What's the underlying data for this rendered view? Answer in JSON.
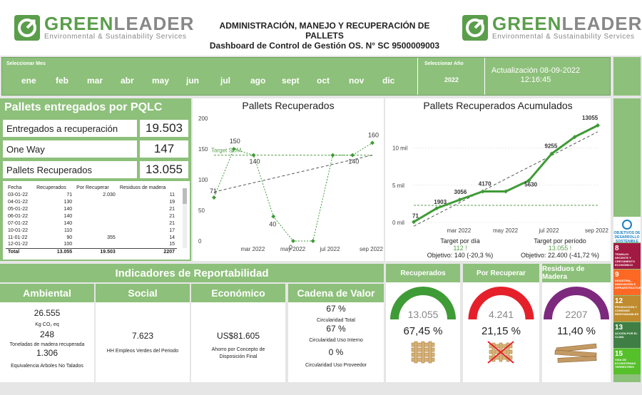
{
  "header": {
    "logo_name_1": "GREEN",
    "logo_name_2": "LEADER",
    "logo_tagline": "Environmental & Sustainability Services",
    "title_line1": "ADMINISTRACIÓN, MANEJO Y RECUPERACIÓN DE PALLETS",
    "title_line2": "Dashboard de Control de Gestión  OS.  N° SC 9500009003"
  },
  "filters": {
    "month_label": "Seleccionar Mes",
    "months": [
      "ene",
      "feb",
      "mar",
      "abr",
      "may",
      "jun",
      "jul",
      "ago",
      "sept",
      "oct",
      "nov",
      "dic"
    ],
    "year_label": "Seleccionar Año",
    "year": "2022",
    "update_line1": "Actualización 08-09-2022",
    "update_line2": "12:16:45"
  },
  "pqlc": {
    "title": "Pallets entregados por PQLC",
    "rows": [
      {
        "label": "Entregados a recuperación",
        "value": "19.503"
      },
      {
        "label": "One Way",
        "value": "147"
      },
      {
        "label": "Pallets Recuperados",
        "value": "13.055"
      }
    ],
    "table_headers": [
      "Fecha",
      "Recuperados",
      "Por Recuperar",
      "Residuos de madera"
    ],
    "table_rows": [
      [
        "03-01-22",
        "71",
        "2.030",
        "11"
      ],
      [
        "04-01-22",
        "130",
        "",
        "19"
      ],
      [
        "05-01-22",
        "140",
        "",
        "21"
      ],
      [
        "06-01-22",
        "140",
        "",
        "21"
      ],
      [
        "07-01-22",
        "140",
        "",
        "21"
      ],
      [
        "10-01-22",
        "110",
        "",
        "17"
      ],
      [
        "11-01-22",
        "90",
        "355",
        "14"
      ],
      [
        "12-01-22",
        "100",
        "",
        "15"
      ]
    ],
    "table_total": [
      "Total",
      "13.055",
      "19.503",
      "2207"
    ]
  },
  "chart_recuperados": {
    "title": "Pallets Recuperados",
    "target_label": "Target SCM",
    "y_ticks": [
      "0",
      "50",
      "100",
      "150",
      "200"
    ],
    "x_ticks": [
      "mar 2022",
      "may 2022",
      "jul 2022",
      "sep 2022"
    ],
    "point_labels": [
      "150",
      "71",
      "140",
      "40",
      "0",
      "160",
      "140"
    ]
  },
  "chart_acumulados": {
    "title": "Pallets Recuperados Acumulados",
    "y_ticks": [
      "0 mil",
      "5 mil",
      "10 mil"
    ],
    "x_ticks": [
      "mar 2022",
      "may 2022",
      "jul 2022",
      "sep 2022"
    ],
    "point_labels": [
      "71",
      "1903",
      "3056",
      "4170",
      "5630",
      "9255",
      "13055"
    ],
    "target_day_label": "Target por día",
    "target_day_value": "112 !",
    "target_day_obj": "Objetivo: 140 (-20,3 %)",
    "target_period_label": "Target por período",
    "target_period_value": "13.055 !",
    "target_period_obj": "Objetivo: 22.400 (-41,72 %)"
  },
  "chart_data": [
    {
      "type": "line",
      "title": "Pallets Recuperados",
      "x": [
        "ene 2022",
        "feb 2022",
        "mar 2022",
        "abr 2022",
        "may 2022",
        "jun 2022",
        "jul 2022",
        "ago 2022",
        "sep 2022"
      ],
      "series": [
        {
          "values": [
            71,
            150,
            140,
            40,
            0,
            0,
            140,
            140,
            160
          ]
        }
      ],
      "target": 140,
      "ylim": [
        0,
        200
      ]
    },
    {
      "type": "line",
      "title": "Pallets Recuperados Acumulados",
      "x": [
        "ene 2022",
        "feb 2022",
        "mar 2022",
        "abr 2022",
        "may 2022",
        "jun 2022",
        "jul 2022",
        "ago 2022",
        "sep 2022"
      ],
      "series": [
        {
          "values": [
            71,
            1903,
            3056,
            4170,
            4170,
            5630,
            9255,
            11500,
            13055
          ]
        }
      ],
      "ylim": [
        0,
        14000
      ]
    }
  ],
  "indicadores": {
    "title": "Indicadores de Reportabilidad",
    "ambiental": {
      "head": "Ambiental",
      "v1": "26.555",
      "u1": "Kg CO₂ eq",
      "v2": "248",
      "u2": "Toneladas de madera recuperada",
      "v3": "1.306",
      "u3": "Equivalencia Arboles No Talados"
    },
    "social": {
      "head": "Social",
      "value": "7.623",
      "unit": "HH Empleos Verdes del Periodo"
    },
    "economico": {
      "head": "Económico",
      "value": "US$81.605",
      "unit": "Ahorro por Concepto de Disposición Final"
    },
    "cadena": {
      "head": "Cadena de Valor",
      "v1": "67 %",
      "u1": "Circularidad Total",
      "v2": "67 %",
      "u2": "Circularidad Uso Interno",
      "v3": "0 %",
      "u3": "Circularidad Uso Proveedor"
    }
  },
  "gauges": [
    {
      "title": "Recuperados",
      "value": "13.055",
      "percent": "67,45 %",
      "fraction": 0.6745,
      "color": "#3f9b36"
    },
    {
      "title": "Por Recuperar",
      "value": "4.241",
      "percent": "21,15 %",
      "fraction": 0.2115,
      "color": "#e5202a"
    },
    {
      "title": "Residuos de Madera",
      "value": "2207",
      "percent": "11,40 %",
      "fraction": 0.114,
      "color": "#7d2a7e"
    }
  ],
  "sdg": {
    "head": "OBJETIVOS DE DESARROLLO SOSTENIBLE",
    "items": [
      {
        "num": "8",
        "text": "TRABAJO DECENTE Y CRECIMIENTO ECONÓMICO",
        "color": "#a21942"
      },
      {
        "num": "9",
        "text": "INDUSTRIA, INNOVACIÓN E INFRAESTRUCTURA",
        "color": "#fd6925"
      },
      {
        "num": "12",
        "text": "PRODUCCIÓN Y CONSUMO RESPONSABLES",
        "color": "#bf8b2e"
      },
      {
        "num": "13",
        "text": "ACCIÓN POR EL CLIMA",
        "color": "#3f7e44"
      },
      {
        "num": "15",
        "text": "VIDA DE ECOSISTEMAS TERRESTRES",
        "color": "#56c02b"
      }
    ]
  }
}
